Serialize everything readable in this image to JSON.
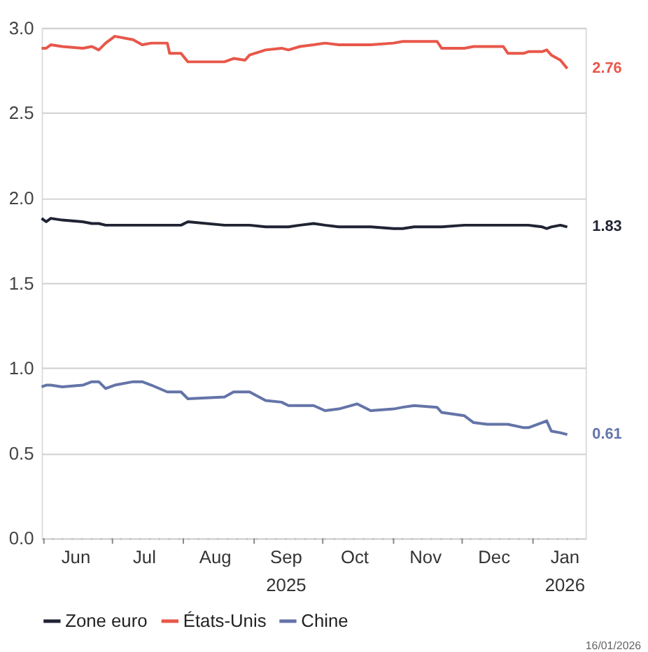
{
  "chart_data": {
    "type": "line",
    "x": [
      "2025-05-31",
      "2025-06-02",
      "2025-06-04",
      "2025-06-09",
      "2025-06-18",
      "2025-06-22",
      "2025-06-25",
      "2025-06-28",
      "2025-07-02",
      "2025-07-10",
      "2025-07-14",
      "2025-07-18",
      "2025-07-25",
      "2025-07-26",
      "2025-07-31",
      "2025-08-03",
      "2025-08-19",
      "2025-08-23",
      "2025-08-28",
      "2025-08-30",
      "2025-09-06",
      "2025-09-13",
      "2025-09-16",
      "2025-09-21",
      "2025-09-27",
      "2025-10-02",
      "2025-10-08",
      "2025-10-16",
      "2025-10-22",
      "2025-11-01",
      "2025-11-05",
      "2025-11-10",
      "2025-11-20",
      "2025-11-22",
      "2025-12-02",
      "2025-12-06",
      "2025-12-12",
      "2025-12-19",
      "2025-12-21",
      "2025-12-28",
      "2025-12-30",
      "2026-01-05",
      "2026-01-07",
      "2026-01-09",
      "2026-01-13",
      "2026-01-16"
    ],
    "series": [
      {
        "name": "Zone euro",
        "color": "#1f2333",
        "values": [
          1.88,
          1.86,
          1.88,
          1.87,
          1.86,
          1.85,
          1.85,
          1.84,
          1.84,
          1.84,
          1.84,
          1.84,
          1.84,
          1.84,
          1.84,
          1.86,
          1.84,
          1.84,
          1.84,
          1.84,
          1.83,
          1.83,
          1.83,
          1.84,
          1.85,
          1.84,
          1.83,
          1.83,
          1.83,
          1.82,
          1.82,
          1.83,
          1.83,
          1.83,
          1.84,
          1.84,
          1.84,
          1.84,
          1.84,
          1.84,
          1.84,
          1.83,
          1.82,
          1.83,
          1.84,
          1.83
        ],
        "value_labels": [
          null,
          null,
          null,
          null,
          null,
          null,
          null,
          null,
          null,
          null,
          null,
          null,
          null,
          null,
          null,
          null,
          null,
          null,
          null,
          null,
          null,
          null,
          null,
          null,
          null,
          null,
          null,
          null,
          null,
          null,
          null,
          null,
          null,
          null,
          null,
          null,
          null,
          null,
          null,
          null,
          null,
          null,
          null,
          null,
          null,
          "1.83"
        ]
      },
      {
        "name": "États-Unis",
        "color": "#e8574a",
        "values": [
          2.88,
          2.88,
          2.9,
          2.89,
          2.88,
          2.89,
          2.87,
          2.91,
          2.95,
          2.93,
          2.9,
          2.91,
          2.91,
          2.85,
          2.85,
          2.8,
          2.8,
          2.82,
          2.81,
          2.84,
          2.87,
          2.88,
          2.87,
          2.89,
          2.9,
          2.91,
          2.9,
          2.9,
          2.9,
          2.91,
          2.92,
          2.92,
          2.92,
          2.88,
          2.88,
          2.89,
          2.89,
          2.89,
          2.85,
          2.85,
          2.86,
          2.86,
          2.87,
          2.84,
          2.81,
          2.76
        ],
        "value_labels": [
          null,
          null,
          null,
          null,
          null,
          null,
          null,
          null,
          null,
          null,
          null,
          null,
          null,
          null,
          null,
          null,
          null,
          null,
          null,
          null,
          null,
          null,
          null,
          null,
          null,
          null,
          null,
          null,
          null,
          null,
          null,
          null,
          null,
          null,
          null,
          null,
          null,
          null,
          null,
          null,
          null,
          null,
          null,
          null,
          null,
          "2.76"
        ]
      },
      {
        "name": "Chine",
        "color": "#6474a8",
        "values": [
          0.89,
          0.9,
          0.9,
          0.89,
          0.9,
          0.92,
          0.92,
          0.88,
          0.9,
          0.92,
          0.92,
          0.9,
          0.86,
          0.86,
          0.86,
          0.82,
          0.83,
          0.86,
          0.86,
          0.86,
          0.81,
          0.8,
          0.78,
          0.78,
          0.78,
          0.75,
          0.76,
          0.79,
          0.75,
          0.76,
          0.77,
          0.78,
          0.77,
          0.74,
          0.72,
          0.68,
          0.67,
          0.67,
          0.67,
          0.65,
          0.65,
          0.68,
          0.69,
          0.63,
          0.62,
          0.61
        ],
        "value_labels": [
          null,
          null,
          null,
          null,
          null,
          null,
          null,
          null,
          null,
          null,
          null,
          null,
          null,
          null,
          null,
          null,
          null,
          null,
          null,
          null,
          null,
          null,
          null,
          null,
          null,
          null,
          null,
          null,
          null,
          null,
          null,
          null,
          null,
          null,
          null,
          null,
          null,
          null,
          null,
          null,
          null,
          null,
          null,
          null,
          null,
          "0.61"
        ]
      }
    ],
    "xlim": [
      "2025-05-31",
      "2026-01-24"
    ],
    "xticks": [
      {
        "value": "2025-06-01",
        "label": null
      },
      {
        "value": "2025-07-01",
        "label": null
      },
      {
        "value": "2025-08-01",
        "label": null
      },
      {
        "value": "2025-10-01",
        "label": null
      },
      {
        "value": "2025-11-01",
        "label": null
      },
      {
        "value": "2025-12-01",
        "label": null
      },
      {
        "value": "2026-01-01",
        "label": null
      },
      {
        "value": "2025-06-15",
        "label": "Jun"
      },
      {
        "value": "2025-07-15",
        "label": "Jul"
      },
      {
        "value": "2025-08-15",
        "label": "Aug"
      },
      {
        "value": "2025-09-01",
        "label": null
      },
      {
        "value": "2025-09-15",
        "label": "Sep\n2025"
      },
      {
        "value": "2025-10-15",
        "label": "Oct"
      },
      {
        "value": "2025-11-15",
        "label": "Nov"
      },
      {
        "value": "2025-12-15",
        "label": "Dec"
      },
      {
        "value": "2026-01-15",
        "label": "Jan\n2026"
      }
    ],
    "ylim": [
      0,
      3.0
    ],
    "yticks": [
      {
        "value": 0,
        "label": "0.0"
      },
      {
        "value": 0.5,
        "label": "0.5"
      },
      {
        "value": 1,
        "label": "1.0"
      },
      {
        "value": 1.5,
        "label": "1.5"
      },
      {
        "value": 2,
        "label": "2.0"
      },
      {
        "value": 2.5,
        "label": "2.5"
      },
      {
        "value": 3,
        "label": "3.0"
      }
    ],
    "grid": "y",
    "legend": "bottom",
    "line_style": "solid",
    "marker": "none",
    "annotations": [
      "16/01/2026"
    ]
  }
}
